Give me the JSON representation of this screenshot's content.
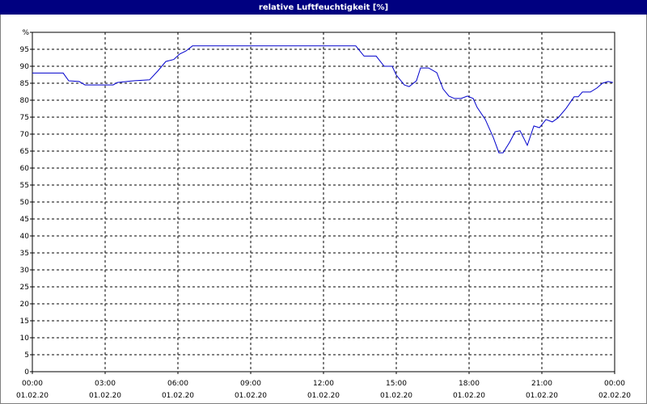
{
  "chart_data": {
    "type": "line",
    "title": "relative Luftfeuchtigkeit [%]",
    "x": [
      0,
      1.27,
      1.5,
      1.93,
      2.17,
      3.33,
      3.5,
      4.17,
      4.83,
      5.17,
      5.5,
      5.83,
      6.07,
      6.33,
      6.6,
      13.33,
      13.67,
      14.17,
      14.5,
      14.83,
      15,
      15.33,
      15.53,
      15.83,
      16,
      16.33,
      16.67,
      16.93,
      17.17,
      17.4,
      17.67,
      17.93,
      18.17,
      18.33,
      18.67,
      19,
      19.23,
      19.4,
      19.67,
      19.9,
      20.1,
      20.4,
      20.67,
      20.9,
      21.17,
      21.43,
      21.67,
      22,
      22.33,
      22.5,
      22.67,
      23,
      23.27,
      23.5,
      23.73,
      23.93
    ],
    "values": [
      88,
      88,
      85.7,
      85.5,
      84.5,
      84.5,
      85.2,
      85.7,
      86,
      88.6,
      91.4,
      92,
      93.6,
      94.5,
      96,
      96,
      93,
      93,
      90,
      90,
      87.4,
      84.5,
      84,
      85.7,
      89.5,
      89.5,
      88.1,
      83.3,
      81.2,
      80.5,
      80.5,
      81.2,
      80.5,
      77.9,
      74.3,
      69,
      64.5,
      64.5,
      67.6,
      70.7,
      71,
      66.7,
      72.4,
      71.9,
      74.3,
      73.6,
      74.8,
      77.6,
      81,
      81,
      82.4,
      82.4,
      83.6,
      85,
      85.5,
      85.2
    ],
    "color": "#0000cc",
    "xlim": [
      0,
      24
    ],
    "xticks": [
      {
        "value": 0,
        "label": "00:00",
        "date": "01.02.20"
      },
      {
        "value": 3,
        "label": "03:00",
        "date": "01.02.20"
      },
      {
        "value": 6,
        "label": "06:00",
        "date": "01.02.20"
      },
      {
        "value": 9,
        "label": "09:00",
        "date": "01.02.20"
      },
      {
        "value": 12,
        "label": "12:00",
        "date": "01.02.20"
      },
      {
        "value": 15,
        "label": "15:00",
        "date": "01.02.20"
      },
      {
        "value": 18,
        "label": "18:00",
        "date": "01.02.20"
      },
      {
        "value": 21,
        "label": "21:00",
        "date": "01.02.20"
      },
      {
        "value": 24,
        "label": "00:00",
        "date": "02.02.20"
      }
    ],
    "ylim": [
      0,
      100
    ],
    "yticks": [
      0,
      5,
      10,
      15,
      20,
      25,
      30,
      35,
      40,
      45,
      50,
      55,
      60,
      65,
      70,
      75,
      80,
      85,
      90,
      95,
      {
        "value": 100,
        "label": "%"
      }
    ],
    "grid": true
  }
}
